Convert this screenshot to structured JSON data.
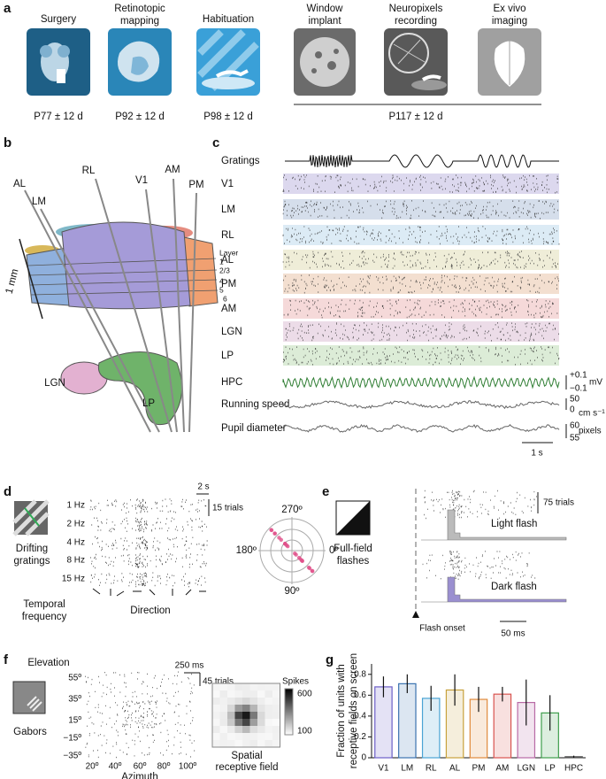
{
  "panel_a": {
    "letter": "a",
    "steps": [
      [
        "Surgery"
      ],
      [
        "Retinotopic",
        "mapping"
      ],
      [
        "Habituation"
      ],
      [
        "Window",
        "implant"
      ],
      [
        "Neuropixels",
        "recording"
      ],
      [
        "Ex vivo",
        "imaging"
      ]
    ],
    "ages": [
      "P77 ± 12 d",
      "P92 ± 12 d",
      "P98 ± 12 d",
      "P117 ± 12 d"
    ]
  },
  "panel_b": {
    "letter": "b",
    "areas": [
      "AL",
      "LM",
      "RL",
      "V1",
      "AM",
      "PM"
    ],
    "layer_title": "Layer",
    "layers": [
      "1",
      "2/3",
      "4",
      "5",
      "6"
    ],
    "scale": "1 mm",
    "thalamus": [
      "LGN",
      "LP"
    ]
  },
  "panel_c": {
    "letter": "c",
    "stimulus": "Gratings",
    "rows": [
      "V1",
      "LM",
      "RL",
      "AL",
      "PM",
      "AM",
      "LGN",
      "LP"
    ],
    "traces": [
      "HPC",
      "Running speed",
      "Pupil diameter"
    ],
    "hpc_scale": [
      "+0.1",
      "−0.1",
      "mV"
    ],
    "speed_scale": [
      "50",
      "0",
      "cm s⁻¹"
    ],
    "pupil_scale": [
      "60",
      "55",
      "pixels"
    ],
    "time_scale": "1 s"
  },
  "panel_d": {
    "letter": "d",
    "stimulus": [
      "Drifting",
      "gratings"
    ],
    "frequencies": [
      "1 Hz",
      "2 Hz",
      "4 Hz",
      "8 Hz",
      "15 Hz"
    ],
    "time_scale": "2 s",
    "trial_scale": "15 trials",
    "x_title": [
      "Temporal",
      "frequency"
    ],
    "direction": "Direction",
    "polar": [
      "270º",
      "0º",
      "180º",
      "90º"
    ]
  },
  "panel_e": {
    "letter": "e",
    "stimulus": [
      "Full-field",
      "flashes"
    ],
    "trial_scale": "75 trials",
    "conditions": [
      "Light flash",
      "Dark flash"
    ],
    "onset": "Flash onset",
    "time_scale": "50 ms"
  },
  "panel_f": {
    "letter": "f",
    "y_title": "Elevation",
    "elevations": [
      "55º",
      "35º",
      "15º",
      "−15º",
      "−35º"
    ],
    "azimuths": [
      "20º",
      "40º",
      "60º",
      "80º",
      "100º"
    ],
    "x_title": "Azimuth",
    "stimulus": "Gabors",
    "time_scale": "250 ms",
    "trial_scale": "45 trials",
    "colorbar_title": "Spikes",
    "colorbar": [
      "600",
      "100"
    ],
    "field_label": [
      "Spatial",
      "receptive field"
    ]
  },
  "panel_g": {
    "letter": "g",
    "chart_data": {
      "type": "bar",
      "y_label": [
        "Fraction of units with",
        "receptive fields on screen"
      ],
      "categories": [
        "V1",
        "LM",
        "RL",
        "AL",
        "PM",
        "AM",
        "LGN",
        "LP",
        "HPC"
      ],
      "values": [
        0.68,
        0.71,
        0.57,
        0.65,
        0.56,
        0.61,
        0.53,
        0.43,
        0.01
      ],
      "errors": [
        0.1,
        0.09,
        0.12,
        0.15,
        0.12,
        0.07,
        0.22,
        0.17,
        0.01
      ],
      "colors": [
        "#6c5fc7",
        "#3b73b0",
        "#4aa3d4",
        "#c7a13c",
        "#e08a3c",
        "#d9534f",
        "#b86aa6",
        "#3f9e4d",
        "#555555"
      ],
      "ylim": [
        0,
        0.9
      ],
      "yticks": [
        0,
        0.2,
        0.4,
        0.6,
        0.8
      ]
    }
  }
}
